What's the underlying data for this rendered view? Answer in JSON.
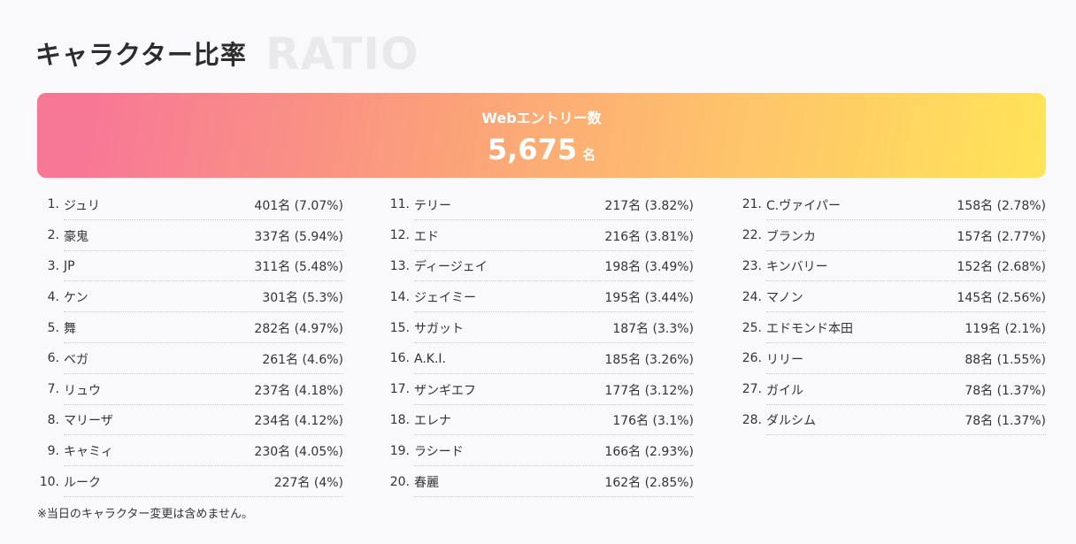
{
  "background_word": "RATIO",
  "title": "キャラクター比率",
  "banner": {
    "label": "Webエントリー数",
    "value": "5,675",
    "unit": "名"
  },
  "columns": [
    [
      [
        "1.",
        "ジュリ",
        "401名 (7.07%)"
      ],
      [
        "2.",
        "豪鬼",
        "337名 (5.94%)"
      ],
      [
        "3.",
        "JP",
        "311名 (5.48%)"
      ],
      [
        "4.",
        "ケン",
        "301名 (5.3%)"
      ],
      [
        "5.",
        "舞",
        "282名 (4.97%)"
      ],
      [
        "6.",
        "ベガ",
        "261名 (4.6%)"
      ],
      [
        "7.",
        "リュウ",
        "237名 (4.18%)"
      ],
      [
        "8.",
        "マリーザ",
        "234名 (4.12%)"
      ],
      [
        "9.",
        "キャミィ",
        "230名 (4.05%)"
      ],
      [
        "10.",
        "ルーク",
        "227名 (4%)"
      ]
    ],
    [
      [
        "11.",
        "テリー",
        "217名 (3.82%)"
      ],
      [
        "12.",
        "エド",
        "216名 (3.81%)"
      ],
      [
        "13.",
        "ディージェイ",
        "198名 (3.49%)"
      ],
      [
        "14.",
        "ジェイミー",
        "195名 (3.44%)"
      ],
      [
        "15.",
        "サガット",
        "187名 (3.3%)"
      ],
      [
        "16.",
        "A.K.I.",
        "185名 (3.26%)"
      ],
      [
        "17.",
        "ザンギエフ",
        "177名 (3.12%)"
      ],
      [
        "18.",
        "エレナ",
        "176名 (3.1%)"
      ],
      [
        "19.",
        "ラシード",
        "166名 (2.93%)"
      ],
      [
        "20.",
        "春麗",
        "162名 (2.85%)"
      ]
    ],
    [
      [
        "21.",
        "C.ヴァイパー",
        "158名 (2.78%)"
      ],
      [
        "22.",
        "ブランカ",
        "157名 (2.77%)"
      ],
      [
        "23.",
        "キンバリー",
        "152名 (2.68%)"
      ],
      [
        "24.",
        "マノン",
        "145名 (2.56%)"
      ],
      [
        "25.",
        "エドモンド本田",
        "119名 (2.1%)"
      ],
      [
        "26.",
        "リリー",
        "88名 (1.55%)"
      ],
      [
        "27.",
        "ガイル",
        "78名 (1.37%)"
      ],
      [
        "28.",
        "ダルシム",
        "78名 (1.37%)"
      ]
    ]
  ],
  "note": "※当日のキャラクター変更は含めません。"
}
